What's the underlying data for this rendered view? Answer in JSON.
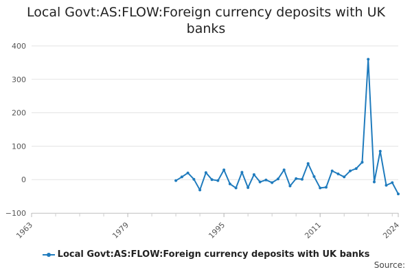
{
  "chart_data": {
    "type": "line",
    "title_lines": [
      "Local Govt:AS:FLOW:Foreign currency deposits with UK",
      "banks"
    ],
    "xlabel": "",
    "ylabel": "",
    "xlim": [
      1963,
      2024
    ],
    "ylim": [
      -100,
      400
    ],
    "x_ticks": [
      "1963",
      "1979",
      "1995",
      "2011",
      "2024"
    ],
    "y_ticks": [
      "400",
      "300",
      "200",
      "100",
      "0",
      "−100"
    ],
    "y_tick_values": [
      400,
      300,
      200,
      100,
      0,
      -100
    ],
    "x_tick_values": [
      1963,
      1979,
      1995,
      2011,
      2024
    ],
    "grid": "horizontal",
    "legend_position": "bottom",
    "series": [
      {
        "name": "Local Govt:AS:FLOW:Foreign currency deposits with UK banks",
        "color": "#1f7bbd",
        "points": [
          [
            1987,
            -3
          ],
          [
            1988,
            8
          ],
          [
            1989,
            20
          ],
          [
            1990,
            1
          ],
          [
            1991,
            -31
          ],
          [
            1992,
            21
          ],
          [
            1993,
            0
          ],
          [
            1994,
            -3
          ],
          [
            1995,
            29
          ],
          [
            1996,
            -13
          ],
          [
            1997,
            -25
          ],
          [
            1998,
            22
          ],
          [
            1999,
            -24
          ],
          [
            2000,
            15
          ],
          [
            2001,
            -7
          ],
          [
            2002,
            -1
          ],
          [
            2003,
            -9
          ],
          [
            2004,
            2
          ],
          [
            2005,
            29
          ],
          [
            2006,
            -19
          ],
          [
            2007,
            3
          ],
          [
            2008,
            1
          ],
          [
            2009,
            48
          ],
          [
            2010,
            9
          ],
          [
            2011,
            -25
          ],
          [
            2012,
            -23
          ],
          [
            2013,
            26
          ],
          [
            2014,
            17
          ],
          [
            2015,
            8
          ],
          [
            2016,
            26
          ],
          [
            2017,
            33
          ],
          [
            2018,
            52
          ],
          [
            2019,
            360
          ],
          [
            2020,
            -7
          ],
          [
            2021,
            85
          ],
          [
            2022,
            -17
          ],
          [
            2023,
            -9
          ],
          [
            2024,
            -43
          ]
        ]
      }
    ]
  },
  "legend": {
    "label": "Local Govt:AS:FLOW:Foreign currency deposits with UK banks"
  },
  "credit": "Source:"
}
